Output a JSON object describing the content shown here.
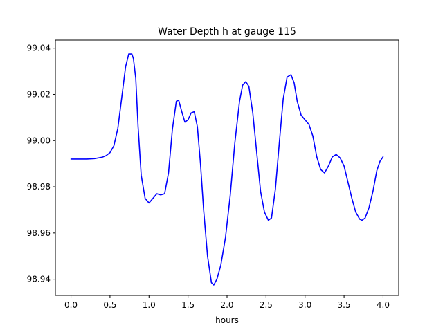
{
  "chart_data": {
    "type": "line",
    "title": "Water Depth h at gauge 115",
    "xlabel": "hours",
    "ylabel": "",
    "xlim": [
      -0.2,
      4.2
    ],
    "ylim": [
      98.933,
      99.0435
    ],
    "x_ticks": [
      0.0,
      0.5,
      1.0,
      1.5,
      2.0,
      2.5,
      3.0,
      3.5,
      4.0
    ],
    "x_tick_labels": [
      "0.0",
      "0.5",
      "1.0",
      "1.5",
      "2.0",
      "2.5",
      "3.0",
      "3.5",
      "4.0"
    ],
    "y_ticks": [
      98.94,
      98.96,
      98.98,
      99.0,
      99.02,
      99.04
    ],
    "y_tick_labels": [
      "98.94",
      "98.96",
      "98.98",
      "99.00",
      "99.02",
      "99.04"
    ],
    "grid": false,
    "series": [
      {
        "color": "#0000ff",
        "x": [
          0.0,
          0.1,
          0.2,
          0.3,
          0.4,
          0.45,
          0.5,
          0.55,
          0.6,
          0.65,
          0.7,
          0.74,
          0.78,
          0.8,
          0.83,
          0.86,
          0.9,
          0.95,
          1.0,
          1.05,
          1.1,
          1.15,
          1.2,
          1.25,
          1.3,
          1.35,
          1.38,
          1.42,
          1.46,
          1.5,
          1.54,
          1.58,
          1.62,
          1.66,
          1.7,
          1.75,
          1.8,
          1.83,
          1.87,
          1.92,
          1.98,
          2.04,
          2.1,
          2.16,
          2.2,
          2.24,
          2.28,
          2.33,
          2.38,
          2.43,
          2.48,
          2.53,
          2.57,
          2.62,
          2.67,
          2.72,
          2.77,
          2.82,
          2.86,
          2.9,
          2.95,
          3.0,
          3.05,
          3.1,
          3.15,
          3.2,
          3.25,
          3.3,
          3.35,
          3.4,
          3.45,
          3.5,
          3.55,
          3.6,
          3.65,
          3.7,
          3.73,
          3.77,
          3.82,
          3.87,
          3.92,
          3.96,
          4.0
        ],
        "y": [
          98.992,
          98.992,
          98.992,
          98.9922,
          98.9928,
          98.9935,
          98.9948,
          98.9978,
          99.0052,
          99.0185,
          99.032,
          99.0375,
          99.0375,
          99.0355,
          99.027,
          99.006,
          98.985,
          98.975,
          98.973,
          98.975,
          98.977,
          98.9765,
          98.977,
          98.986,
          99.005,
          99.017,
          99.0175,
          99.0125,
          99.008,
          99.009,
          99.012,
          99.0125,
          99.006,
          98.99,
          98.97,
          98.95,
          98.9385,
          98.9375,
          98.94,
          98.946,
          98.958,
          98.976,
          98.999,
          99.017,
          99.024,
          99.0255,
          99.0235,
          99.012,
          98.995,
          98.978,
          98.969,
          98.9655,
          98.9665,
          98.979,
          98.999,
          99.018,
          99.0275,
          99.0285,
          99.025,
          99.017,
          99.011,
          99.009,
          99.007,
          99.002,
          98.993,
          98.9875,
          98.986,
          98.989,
          98.993,
          98.994,
          98.9925,
          98.989,
          98.982,
          98.975,
          98.969,
          98.966,
          98.9655,
          98.9665,
          98.971,
          98.978,
          98.987,
          98.991,
          98.993
        ]
      }
    ]
  }
}
